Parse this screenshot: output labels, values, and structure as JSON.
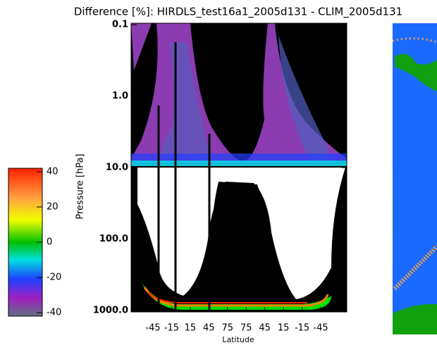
{
  "chart_data": {
    "type": "heatmap",
    "title": "Difference [%]: HIRDLS_test16a1_2005d131 - CLIM_2005d131",
    "xlabel": "Latitude",
    "ylabel": "Pressure [hPa]",
    "categories": [
      "-45",
      "-15",
      "15",
      "45",
      "75",
      "75",
      "45",
      "15",
      "-15",
      "-45"
    ],
    "ylim": [
      1000,
      0.1
    ],
    "log_y": true,
    "yticks": [
      {
        "value": 1000,
        "label": "1000.0"
      },
      {
        "value": 100,
        "label": "100.0"
      },
      {
        "value": 10,
        "label": "10.0"
      },
      {
        "value": 1,
        "label": "1.0"
      },
      0.1
    ],
    "colorbar": {
      "lim": [
        -42,
        42
      ],
      "ticks": [
        -40,
        -20,
        0,
        20,
        40
      ]
    }
  }
}
